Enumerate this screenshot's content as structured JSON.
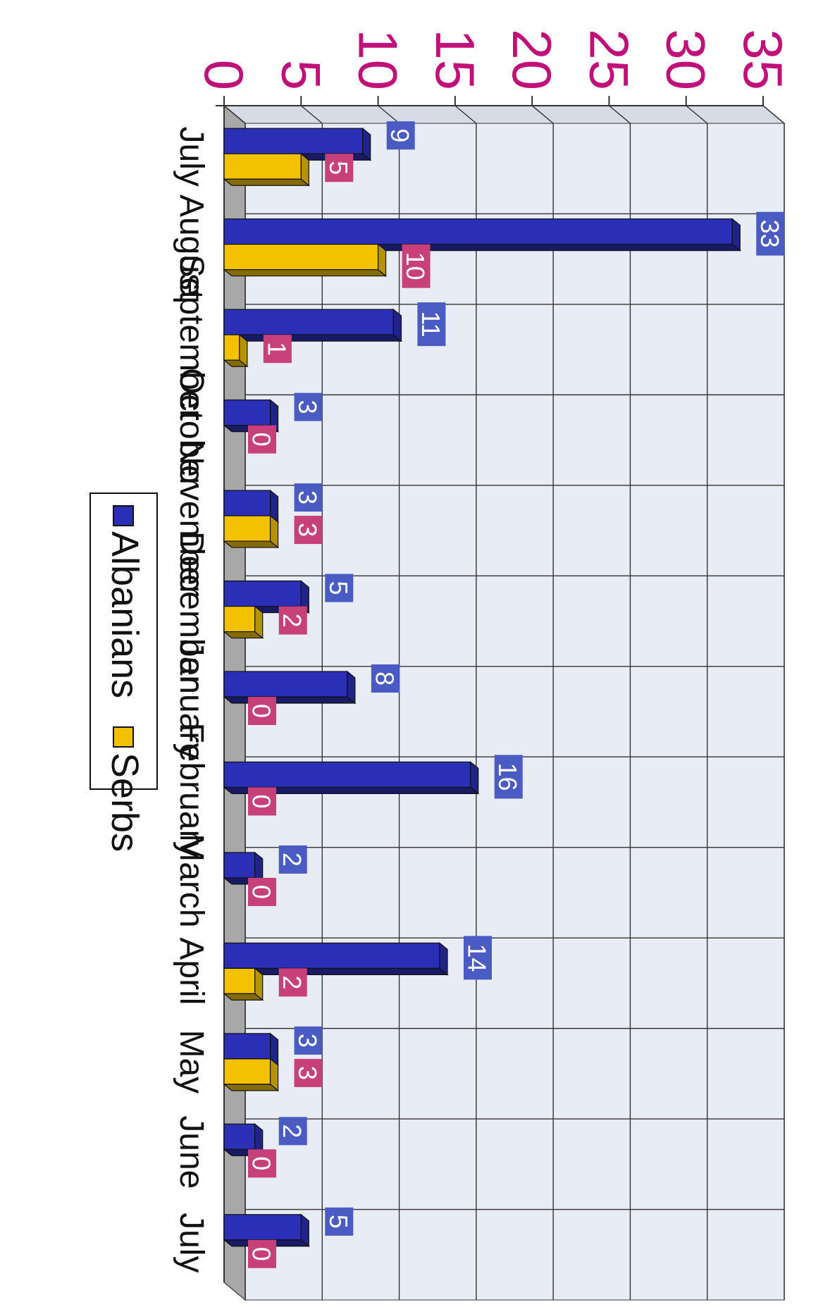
{
  "chart_data": {
    "type": "bar",
    "categories": [
      "July",
      "August",
      "September",
      "October",
      "November",
      "December",
      "January",
      "February",
      "March",
      "April",
      "May",
      "June",
      "July"
    ],
    "series": [
      {
        "name": "Albanians",
        "values": [
          9,
          33,
          11,
          3,
          3,
          5,
          8,
          16,
          2,
          14,
          3,
          2,
          5
        ],
        "data_labels": [
          "9",
          "33",
          "11",
          "3",
          "3",
          "5",
          "8",
          "16",
          "2",
          "14",
          "3",
          "2",
          "5"
        ]
      },
      {
        "name": "Serbs",
        "values": [
          5,
          10,
          1,
          0,
          3,
          2,
          0,
          0,
          0,
          2,
          3,
          0,
          0
        ],
        "data_labels": [
          "5",
          "10",
          "1",
          "0",
          "3",
          "2",
          "0",
          "0",
          "0",
          "2",
          "3",
          "0",
          "0"
        ]
      }
    ],
    "ylim": [
      0,
      35
    ],
    "yticks": [
      "0",
      "5",
      "10",
      "15",
      "20",
      "25",
      "30",
      "35"
    ],
    "grid": true,
    "three_d": true,
    "legend": "bottom",
    "orientation": "rotated 180 degrees",
    "colors": {
      "Albanians": "#2b2fb8",
      "Serbs": "#f2c200",
      "albanians_label_bg": "#4a5bc4",
      "serbs_label_bg": "#c8407a",
      "tick_label": "#c0107a",
      "wall": "#e8ecf4",
      "floor": "#a8a8a8"
    }
  }
}
